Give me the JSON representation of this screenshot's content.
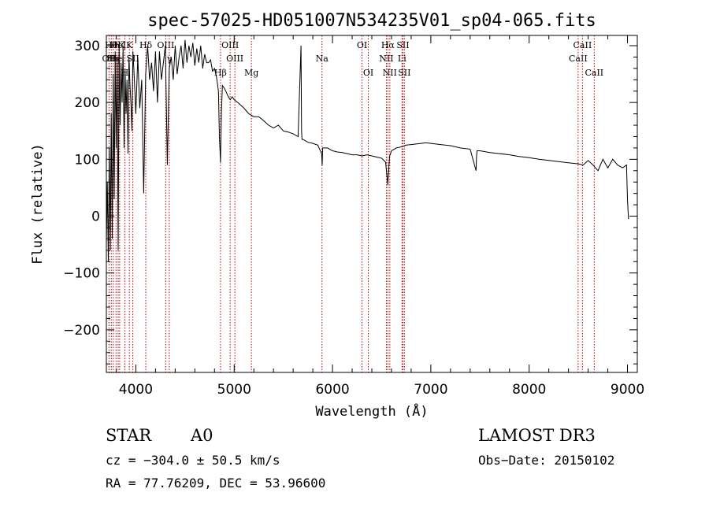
{
  "chart_data": {
    "type": "line",
    "title": "spec-57025-HD051007N534235V01_sp04-065.fits",
    "xlabel": "Wavelength (Å)",
    "ylabel": "Flux (relative)",
    "xlim": [
      3700,
      9100
    ],
    "ylim": [
      -275,
      318
    ],
    "xticks": [
      4000,
      5000,
      6000,
      7000,
      8000,
      9000
    ],
    "yticks": [
      -200,
      -100,
      0,
      100,
      200,
      300
    ],
    "grid": false,
    "series": [
      {
        "name": "flux",
        "x": [
          3700,
          3710,
          3720,
          3730,
          3740,
          3750,
          3760,
          3770,
          3780,
          3790,
          3800,
          3810,
          3820,
          3830,
          3840,
          3850,
          3860,
          3870,
          3880,
          3890,
          3900,
          3910,
          3920,
          3930,
          3940,
          3950,
          3960,
          3970,
          3980,
          3990,
          4000,
          4020,
          4040,
          4060,
          4080,
          4100,
          4120,
          4140,
          4160,
          4180,
          4200,
          4220,
          4240,
          4260,
          4280,
          4300,
          4320,
          4340,
          4360,
          4380,
          4400,
          4420,
          4440,
          4460,
          4480,
          4500,
          4520,
          4540,
          4560,
          4580,
          4600,
          4620,
          4640,
          4660,
          4680,
          4700,
          4720,
          4740,
          4760,
          4780,
          4800,
          4820,
          4840,
          4850,
          4861,
          4870,
          4880,
          4900,
          4920,
          4940,
          4960,
          4980,
          5000,
          5050,
          5100,
          5150,
          5200,
          5250,
          5300,
          5350,
          5400,
          5450,
          5500,
          5550,
          5600,
          5650,
          5680,
          5685,
          5690,
          5700,
          5750,
          5800,
          5850,
          5890,
          5895,
          5900,
          5950,
          6000,
          6050,
          6100,
          6150,
          6200,
          6250,
          6300,
          6350,
          6400,
          6450,
          6500,
          6540,
          6563,
          6580,
          6600,
          6650,
          6700,
          6750,
          6800,
          6850,
          6900,
          6950,
          7000,
          7100,
          7200,
          7300,
          7400,
          7460,
          7465,
          7470,
          7500,
          7600,
          7700,
          7800,
          7900,
          8000,
          8100,
          8200,
          8300,
          8400,
          8500,
          8550,
          8600,
          8650,
          8700,
          8750,
          8800,
          8850,
          8900,
          8950,
          8990,
          9000,
          9010
        ],
        "values": [
          -50,
          60,
          -80,
          120,
          -60,
          180,
          -40,
          250,
          30,
          290,
          120,
          280,
          -60,
          300,
          160,
          270,
          200,
          300,
          120,
          260,
          180,
          240,
          110,
          280,
          230,
          200,
          150,
          290,
          260,
          220,
          180,
          280,
          190,
          240,
          40,
          250,
          300,
          240,
          270,
          220,
          290,
          200,
          290,
          240,
          270,
          300,
          90,
          260,
          280,
          240,
          300,
          250,
          280,
          300,
          260,
          310,
          270,
          300,
          280,
          305,
          265,
          295,
          270,
          300,
          260,
          285,
          270,
          270,
          275,
          255,
          260,
          245,
          220,
          140,
          95,
          180,
          230,
          225,
          218,
          210,
          205,
          210,
          205,
          198,
          190,
          180,
          175,
          175,
          168,
          160,
          155,
          160,
          150,
          148,
          145,
          140,
          300,
          150,
          135,
          135,
          130,
          128,
          125,
          110,
          90,
          120,
          120,
          115,
          113,
          112,
          110,
          108,
          108,
          106,
          108,
          106,
          104,
          102,
          95,
          55,
          105,
          115,
          120,
          122,
          125,
          126,
          127,
          128,
          129,
          128,
          126,
          124,
          120,
          118,
          80,
          105,
          115,
          115,
          112,
          110,
          108,
          105,
          103,
          100,
          98,
          96,
          94,
          92,
          90,
          98,
          90,
          80,
          100,
          85,
          100,
          90,
          85,
          90,
          30,
          -5
        ]
      }
    ],
    "lines": [
      {
        "x": 3727,
        "label": "OII",
        "row": 2
      },
      {
        "x": 3750,
        "label": "Hθ",
        "row": 1
      },
      {
        "x": 3771,
        "label": "Hη",
        "row": 2
      },
      {
        "x": 3798,
        "label": "He",
        "row": 2
      },
      {
        "x": 3820,
        "label": "HeI",
        "row": 1
      },
      {
        "x": 3835,
        "label": "Hζ",
        "row": 1
      },
      {
        "x": 3889,
        "label": "H",
        "row": 3
      },
      {
        "x": 3934,
        "label": "K",
        "row": 1
      },
      {
        "x": 3969,
        "label": "SII",
        "row": 2
      },
      {
        "x": 4101,
        "label": "Hδ",
        "row": 1
      },
      {
        "x": 4304,
        "label": "OIII",
        "row": 1
      },
      {
        "x": 4340,
        "label": "γ",
        "row": 2
      },
      {
        "x": 4861,
        "label": "Hβ",
        "row": 3
      },
      {
        "x": 4959,
        "label": "OIII",
        "row": 1
      },
      {
        "x": 5007,
        "label": "OIII",
        "row": 2
      },
      {
        "x": 5175,
        "label": "Mg",
        "row": 3
      },
      {
        "x": 5893,
        "label": "Na",
        "row": 2
      },
      {
        "x": 6300,
        "label": "OI",
        "row": 1
      },
      {
        "x": 6364,
        "label": "OI",
        "row": 3
      },
      {
        "x": 6548,
        "label": "NII",
        "row": 2
      },
      {
        "x": 6563,
        "label": "Hα",
        "row": 1
      },
      {
        "x": 6583,
        "label": "NII",
        "row": 3
      },
      {
        "x": 6707,
        "label": "Li",
        "row": 2
      },
      {
        "x": 6716,
        "label": "SII",
        "row": 1
      },
      {
        "x": 6731,
        "label": "SII",
        "row": 3
      },
      {
        "x": 8498,
        "label": "CaII",
        "row": 2
      },
      {
        "x": 8542,
        "label": "CaII",
        "row": 1
      },
      {
        "x": 8662,
        "label": "CaII",
        "row": 3
      }
    ]
  },
  "info": {
    "class_label": "STAR",
    "subclass": "A0",
    "survey": "LAMOST DR3",
    "cz": "cz = −304.0 ± 50.5 km/s",
    "obs_date": "Obs−Date: 20150102",
    "coords": "RA =  77.76209, DEC =  53.96600"
  }
}
